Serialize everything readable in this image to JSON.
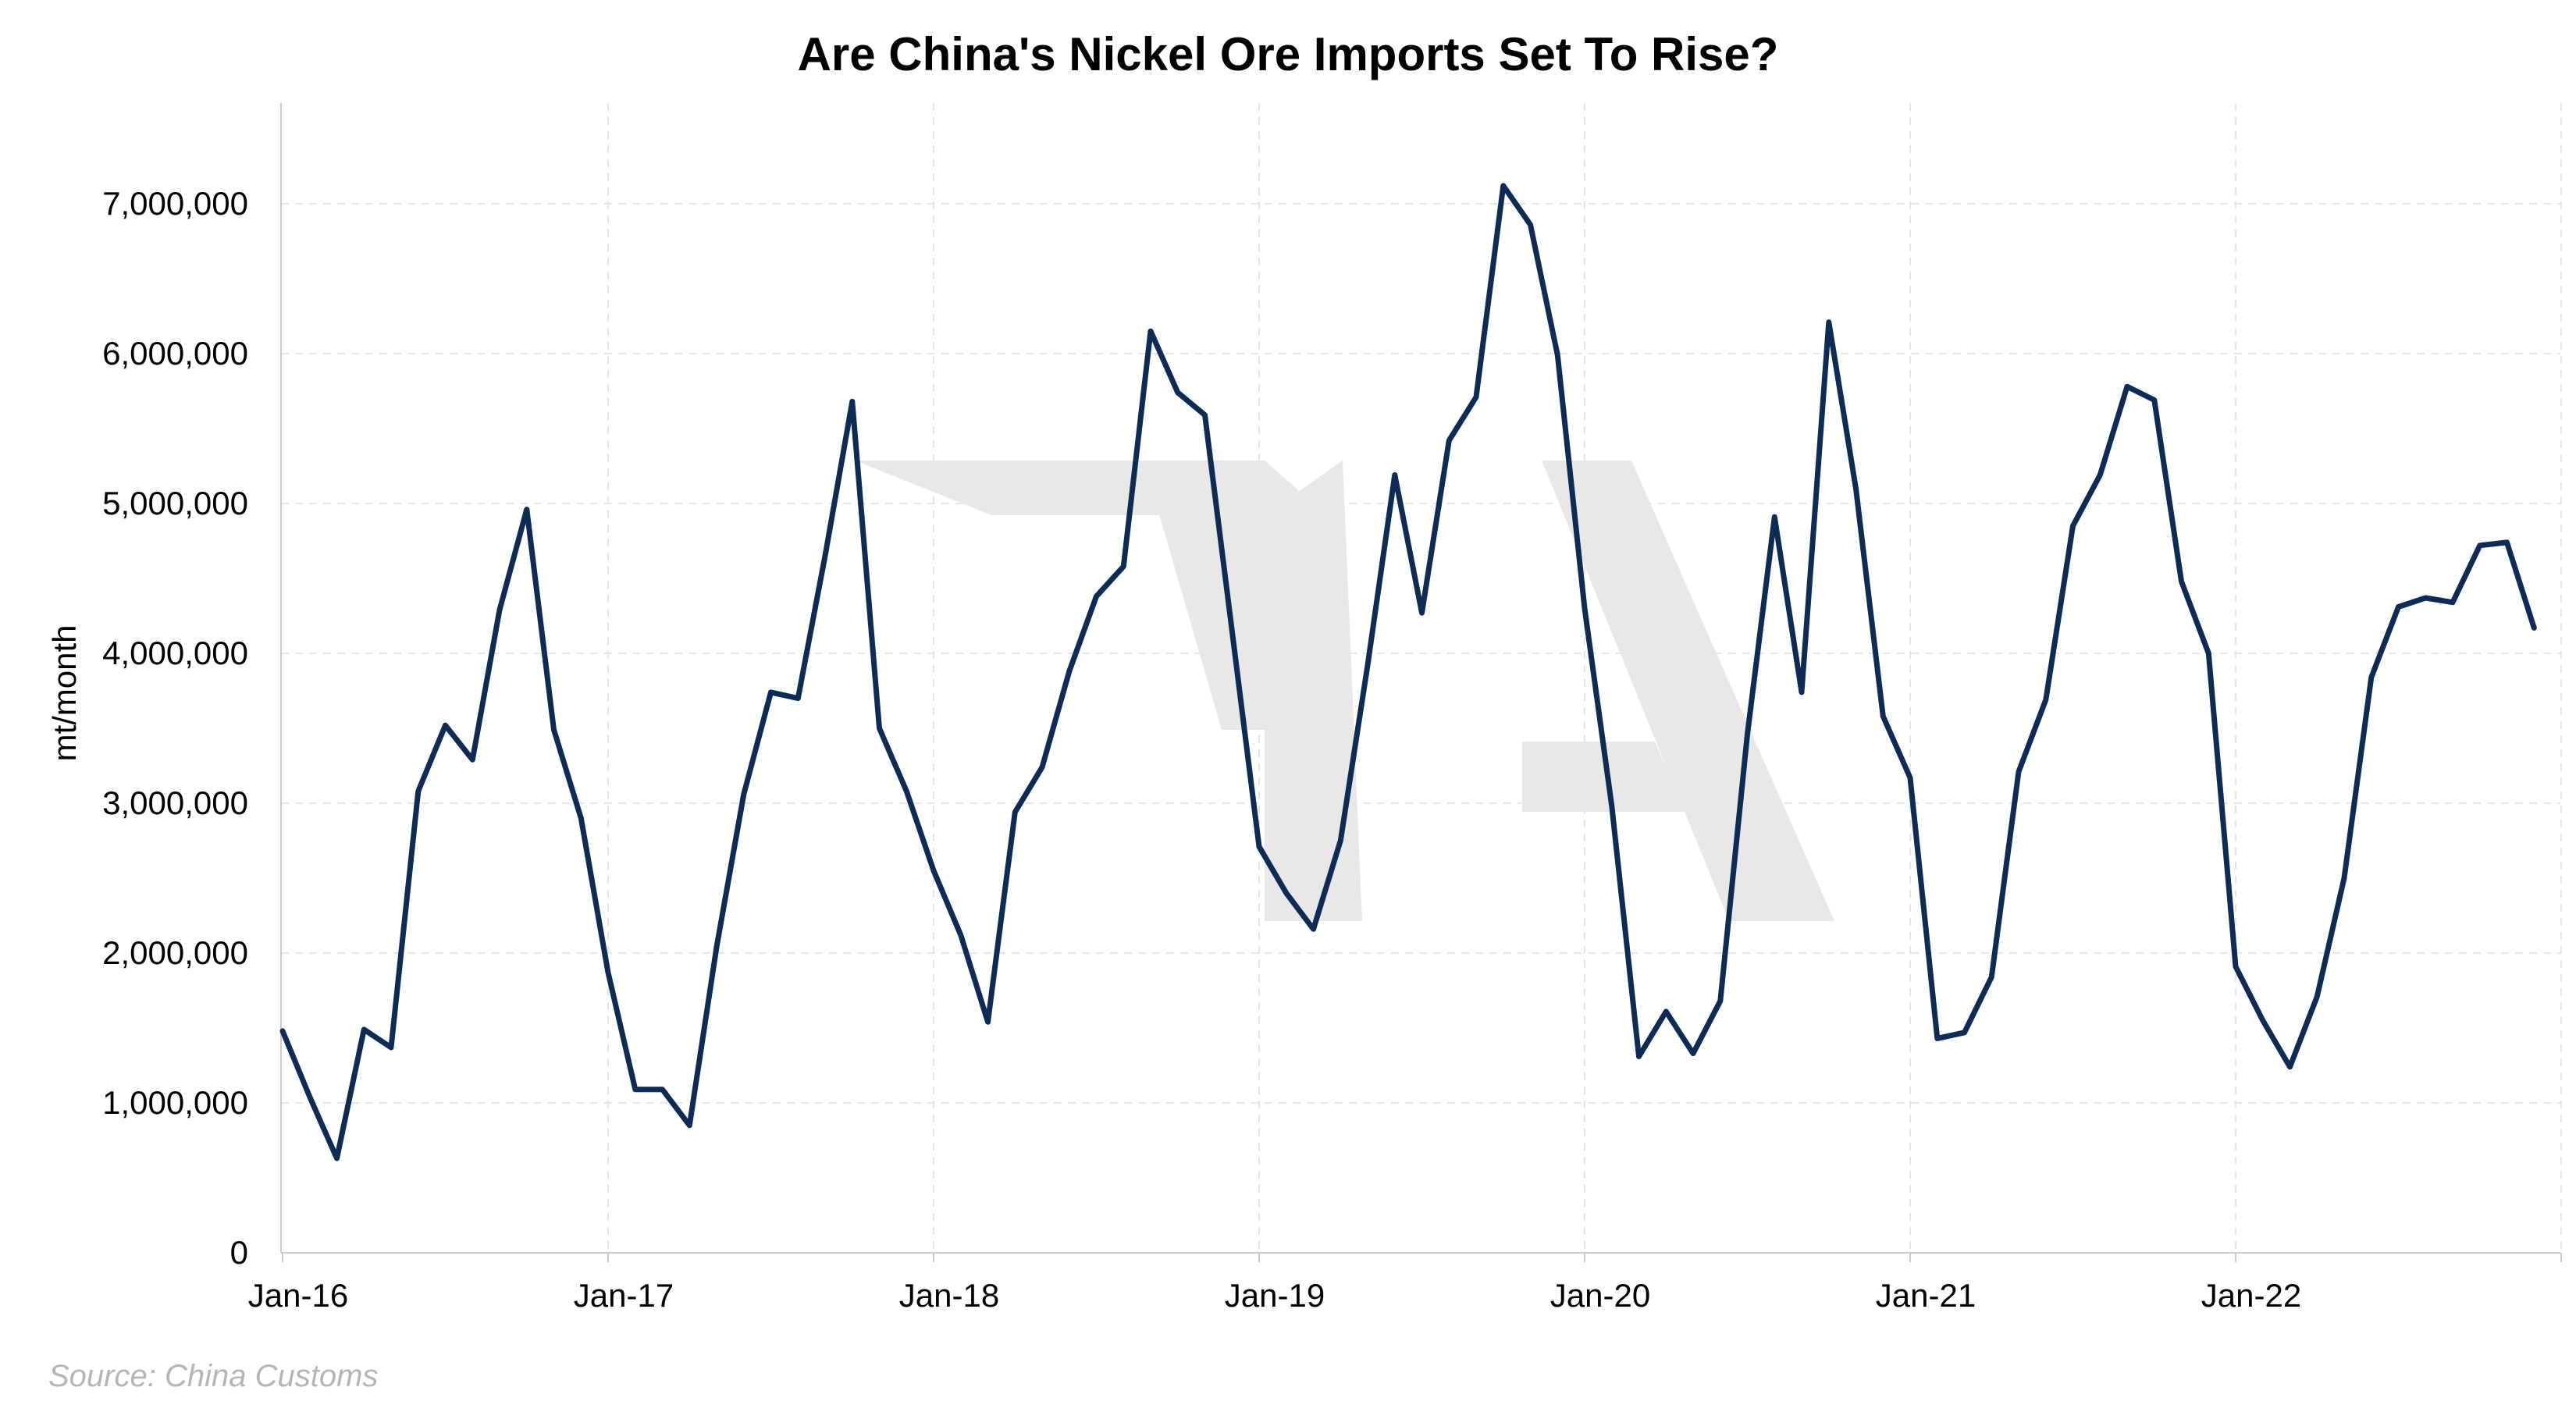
{
  "chart_data": {
    "type": "line",
    "title": "Are China's Nickel Ore Imports Set To Rise?",
    "xlabel": "",
    "ylabel": "mt/month",
    "source": "Source: China Customs",
    "x_start": "2016-01",
    "x_end": "2022-12",
    "x_tick_labels": [
      "Jan-16",
      "Jan-17",
      "Jan-18",
      "Jan-19",
      "Jan-20",
      "Jan-21",
      "Jan-22"
    ],
    "y_tick_labels": [
      "0",
      "1,000,000",
      "2,000,000",
      "3,000,000",
      "4,000,000",
      "5,000,000",
      "6,000,000",
      "7,000,000"
    ],
    "ylim": [
      0,
      7500000
    ],
    "grid": true,
    "series": [
      {
        "name": "",
        "color": "#0d2b55",
        "x": [
          "2016-01",
          "2016-02",
          "2016-03",
          "2016-04",
          "2016-05",
          "2016-06",
          "2016-07",
          "2016-08",
          "2016-09",
          "2016-10",
          "2016-11",
          "2016-12",
          "2017-01",
          "2017-02",
          "2017-03",
          "2017-04",
          "2017-05",
          "2017-06",
          "2017-07",
          "2017-08",
          "2017-09",
          "2017-10",
          "2017-11",
          "2017-12",
          "2018-01",
          "2018-02",
          "2018-03",
          "2018-04",
          "2018-05",
          "2018-06",
          "2018-07",
          "2018-08",
          "2018-09",
          "2018-10",
          "2018-11",
          "2018-12",
          "2019-01",
          "2019-02",
          "2019-03",
          "2019-04",
          "2019-05",
          "2019-06",
          "2019-07",
          "2019-08",
          "2019-09",
          "2019-10",
          "2019-11",
          "2019-12",
          "2020-01",
          "2020-02",
          "2020-03",
          "2020-04",
          "2020-05",
          "2020-06",
          "2020-07",
          "2020-08",
          "2020-09",
          "2020-10",
          "2020-11",
          "2020-12",
          "2021-01",
          "2021-02",
          "2021-03",
          "2021-04",
          "2021-05",
          "2021-06",
          "2021-07",
          "2021-08",
          "2021-09",
          "2021-10",
          "2021-11",
          "2021-12",
          "2022-01",
          "2022-02",
          "2022-03",
          "2022-04",
          "2022-05",
          "2022-06",
          "2022-07",
          "2022-08",
          "2022-09",
          "2022-10",
          "2022-11",
          "2022-12"
        ],
        "values": [
          1480000,
          1040000,
          630000,
          1490000,
          1370000,
          3080000,
          3520000,
          3290000,
          4290000,
          4960000,
          3490000,
          2900000,
          1870000,
          1090000,
          1090000,
          850000,
          2040000,
          3060000,
          3740000,
          3700000,
          4650000,
          5680000,
          3500000,
          3080000,
          2550000,
          2120000,
          1540000,
          2940000,
          3240000,
          3880000,
          4380000,
          4580000,
          6150000,
          5740000,
          5590000,
          4150000,
          2710000,
          2400000,
          2160000,
          2750000,
          3920000,
          5190000,
          4270000,
          5420000,
          5710000,
          7120000,
          6860000,
          5990000,
          4300000,
          2980000,
          1310000,
          1610000,
          1330000,
          1680000,
          3460000,
          4910000,
          3740000,
          6210000,
          5100000,
          3580000,
          3170000,
          1430000,
          1470000,
          1840000,
          3210000,
          3690000,
          4850000,
          5190000,
          5780000,
          5690000,
          4480000,
          4000000,
          1910000,
          1550000,
          1240000,
          1710000,
          2500000,
          3840000,
          4310000,
          4370000,
          4340000,
          4720000,
          4740000,
          4170000
        ]
      }
    ]
  }
}
